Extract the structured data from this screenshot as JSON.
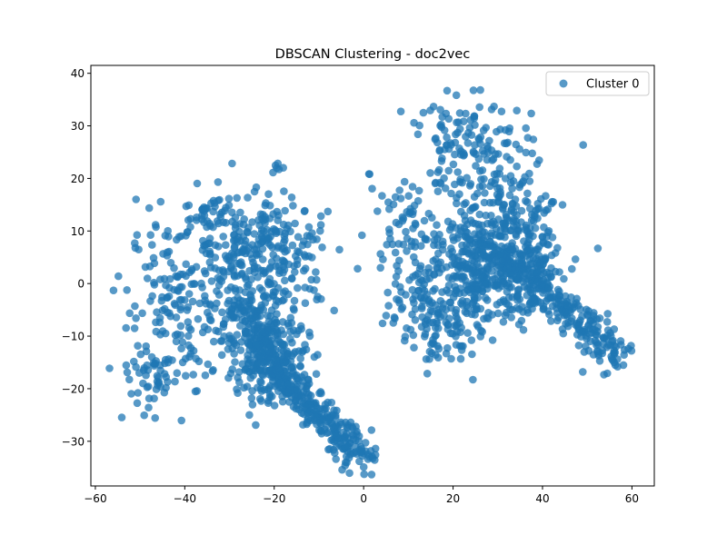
{
  "chart_data": {
    "type": "scatter",
    "title": "DBSCAN Clustering - doc2vec",
    "xlabel": "",
    "ylabel": "",
    "xlim": [
      -61,
      65
    ],
    "ylim": [
      -38.5,
      41.5
    ],
    "xticks": [
      -60,
      -40,
      -20,
      0,
      20,
      40,
      60
    ],
    "yticks": [
      -30,
      -20,
      -10,
      0,
      10,
      20,
      30,
      40
    ],
    "xtick_labels": [
      "−60",
      "−40",
      "−20",
      "0",
      "20",
      "40",
      "60"
    ],
    "ytick_labels": [
      "−30",
      "−20",
      "−10",
      "0",
      "10",
      "20",
      "30",
      "40"
    ],
    "grid": false,
    "legend_position": "upper right",
    "marker_alpha": 0.75,
    "series": [
      {
        "name": "Cluster 0",
        "color": "#1f77b4",
        "components": [
          {
            "cx": -24,
            "cy": -8,
            "sx": 4.5,
            "sy": 6,
            "n": 220
          },
          {
            "cx": -20,
            "cy": -15,
            "sx": 4,
            "sy": 5,
            "n": 150
          },
          {
            "cx": -27,
            "cy": 8,
            "sx": 6,
            "sy": 5,
            "n": 170
          },
          {
            "cx": -42,
            "cy": -4,
            "sx": 6,
            "sy": 7,
            "n": 150
          },
          {
            "cx": -46,
            "cy": -17,
            "sx": 5,
            "sy": 3.5,
            "n": 60
          },
          {
            "cx": -16,
            "cy": 5,
            "sx": 5,
            "sy": 5,
            "n": 80
          },
          {
            "cx": -34,
            "cy": 13,
            "sx": 3,
            "sy": 2,
            "n": 30
          },
          {
            "cx": -20,
            "cy": 22,
            "sx": 1.2,
            "sy": 0.5,
            "n": 6
          },
          {
            "cx": 24,
            "cy": 2,
            "sx": 6,
            "sy": 6,
            "n": 170
          },
          {
            "cx": 31,
            "cy": 5,
            "sx": 6,
            "sy": 5,
            "n": 260
          },
          {
            "cx": 36,
            "cy": 2,
            "sx": 5,
            "sy": 4,
            "n": 100
          },
          {
            "cx": 24,
            "cy": 26,
            "sx": 7,
            "sy": 4.5,
            "n": 130
          },
          {
            "cx": 14,
            "cy": 1,
            "sx": 5,
            "sy": 7,
            "n": 110
          },
          {
            "cx": 19,
            "cy": -10,
            "sx": 4,
            "sy": 3,
            "n": 55
          },
          {
            "cx": 30,
            "cy": 15,
            "sx": 7,
            "sy": 4,
            "n": 90
          },
          {
            "cx": 9,
            "cy": 13,
            "sx": 3,
            "sy": 4,
            "n": 35
          },
          {
            "cx": 1,
            "cy": 21,
            "sx": 0.3,
            "sy": 0.3,
            "n": 2
          }
        ],
        "arms": [
          {
            "x0": -24,
            "y0": -12,
            "x1": -1,
            "y1": -33,
            "sd": 1.8,
            "n": 300
          },
          {
            "x0": -1,
            "y0": -33,
            "x1": 3,
            "y1": -33.5,
            "sd": 0.8,
            "n": 12
          },
          {
            "x0": 34,
            "y0": 3,
            "x1": 58,
            "y1": -15,
            "sd": 2,
            "n": 220
          }
        ]
      }
    ]
  }
}
